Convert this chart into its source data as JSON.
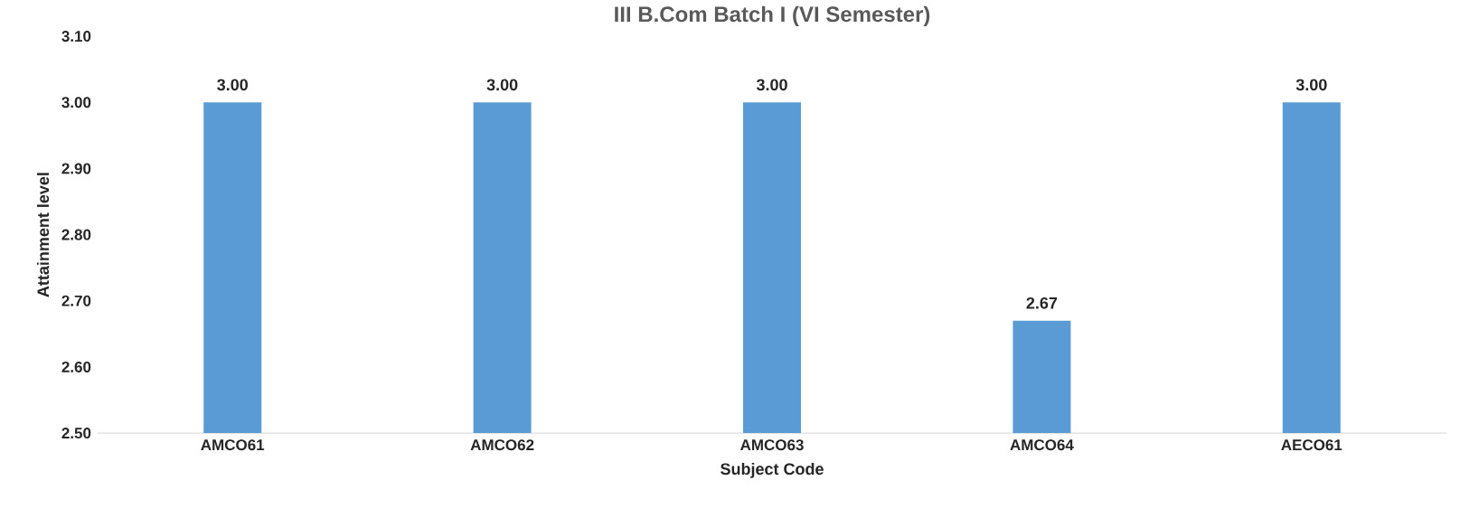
{
  "chart_data": {
    "type": "bar",
    "title": "III B.Com Batch I (VI Semester)",
    "xlabel": "Subject Code",
    "ylabel": "Attainment level",
    "categories": [
      "AMCO61",
      "AMCO62",
      "AMCO63",
      "AMCO64",
      "AECO61"
    ],
    "values": [
      3.0,
      3.0,
      3.0,
      2.67,
      3.0
    ],
    "value_labels": [
      "3.00",
      "3.00",
      "3.00",
      "2.67",
      "3.00"
    ],
    "color": "#5b9bd5",
    "ylim": [
      2.5,
      3.1
    ],
    "yticks": [
      {
        "value": 2.5,
        "label": "2.50"
      },
      {
        "value": 2.6,
        "label": "2.60"
      },
      {
        "value": 2.7,
        "label": "2.70"
      },
      {
        "value": 2.8,
        "label": "2.80"
      },
      {
        "value": 2.9,
        "label": "2.90"
      },
      {
        "value": 3.0,
        "label": "3.00"
      },
      {
        "value": 3.1,
        "label": "3.10"
      }
    ]
  }
}
